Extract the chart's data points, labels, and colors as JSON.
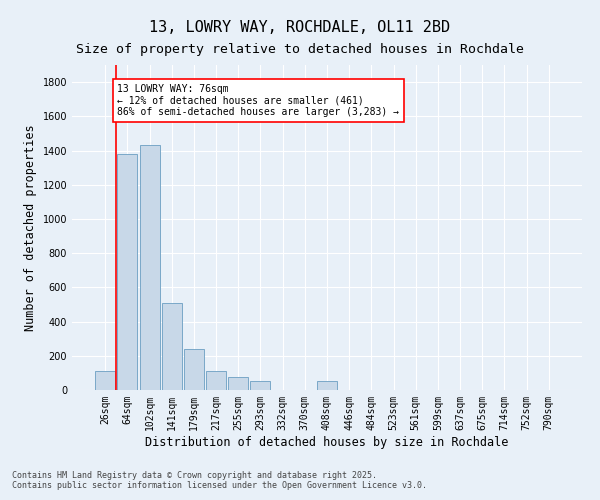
{
  "title": "13, LOWRY WAY, ROCHDALE, OL11 2BD",
  "subtitle": "Size of property relative to detached houses in Rochdale",
  "xlabel": "Distribution of detached houses by size in Rochdale",
  "ylabel": "Number of detached properties",
  "categories": [
    "26sqm",
    "64sqm",
    "102sqm",
    "141sqm",
    "179sqm",
    "217sqm",
    "255sqm",
    "293sqm",
    "332sqm",
    "370sqm",
    "408sqm",
    "446sqm",
    "484sqm",
    "523sqm",
    "561sqm",
    "599sqm",
    "637sqm",
    "675sqm",
    "714sqm",
    "752sqm",
    "790sqm"
  ],
  "values": [
    110,
    1380,
    1430,
    510,
    240,
    110,
    75,
    55,
    0,
    0,
    55,
    0,
    0,
    0,
    0,
    0,
    0,
    0,
    0,
    0,
    0
  ],
  "bar_color": "#c8d8e8",
  "bar_edge_color": "#7aa8c8",
  "background_color": "#e8f0f8",
  "grid_color": "#ffffff",
  "annotation_line1": "13 LOWRY WAY: 76sqm",
  "annotation_line2": "← 12% of detached houses are smaller (461)",
  "annotation_line3": "86% of semi-detached houses are larger (3,283) →",
  "vline_x": 0.5,
  "ylim": [
    0,
    1900
  ],
  "yticks": [
    0,
    200,
    400,
    600,
    800,
    1000,
    1200,
    1400,
    1600,
    1800
  ],
  "footer1": "Contains HM Land Registry data © Crown copyright and database right 2025.",
  "footer2": "Contains public sector information licensed under the Open Government Licence v3.0.",
  "title_fontsize": 11,
  "subtitle_fontsize": 9.5,
  "tick_fontsize": 7,
  "label_fontsize": 8.5,
  "annotation_fontsize": 7,
  "footer_fontsize": 6
}
